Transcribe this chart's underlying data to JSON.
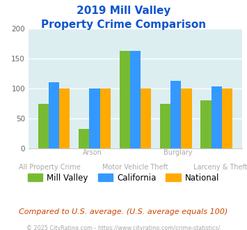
{
  "title_line1": "2019 Mill Valley",
  "title_line2": "Property Crime Comparison",
  "categories": [
    "All Property Crime",
    "Arson",
    "Motor Vehicle Theft",
    "Burglary",
    "Larceny & Theft"
  ],
  "mill_valley": [
    75,
    33,
    163,
    75,
    80
  ],
  "california": [
    110,
    100,
    163,
    113,
    103
  ],
  "national": [
    100,
    100,
    100,
    100,
    100
  ],
  "bar_colors": {
    "mill_valley": "#77bb33",
    "california": "#3399ff",
    "national": "#ffaa00"
  },
  "ylim": [
    0,
    200
  ],
  "yticks": [
    0,
    50,
    100,
    150,
    200
  ],
  "background_color": "#ddeef0",
  "title_color": "#1155cc",
  "xlabel_color_top": "#aaaaaa",
  "xlabel_color_bottom": "#aaaaaa",
  "footer_text": "Compared to U.S. average. (U.S. average equals 100)",
  "credit_text": "© 2025 CityRating.com - https://www.cityrating.com/crime-statistics/",
  "legend_labels": [
    "Mill Valley",
    "California",
    "National"
  ],
  "labels_top_row": [
    "",
    "Arson",
    "",
    "Burglary",
    ""
  ],
  "labels_bottom_row": [
    "All Property Crime",
    "",
    "Motor Vehicle Theft",
    "",
    "Larceny & Theft"
  ]
}
